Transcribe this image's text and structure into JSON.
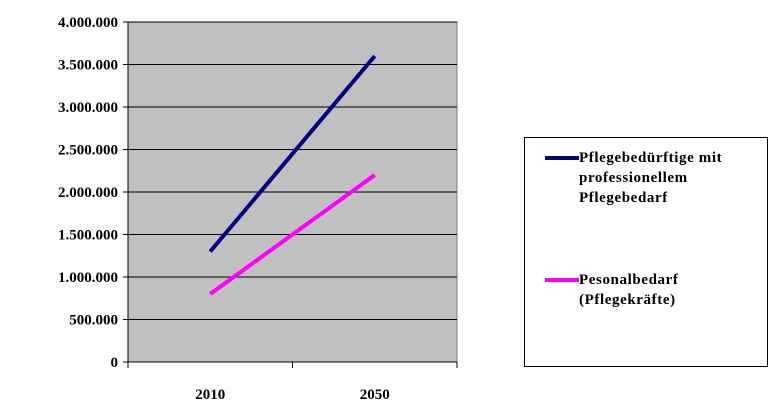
{
  "chart_data": {
    "type": "line",
    "x": [
      "2010",
      "2050"
    ],
    "ylim": [
      0,
      4000000
    ],
    "y_ticks": [
      "0",
      "500.000",
      "1.000.000",
      "1.500.000",
      "2.000.000",
      "2.500.000",
      "3.000.000",
      "3.500.000",
      "4.000.000"
    ],
    "y_tick_values": [
      0,
      500000,
      1000000,
      1500000,
      2000000,
      2500000,
      3000000,
      3500000,
      4000000
    ],
    "grid": true,
    "plot_background": "#c0c0c0",
    "legend_position": "right",
    "series": [
      {
        "name": "Pflegebedürftige mit professionellem Pflegebedarf",
        "values": [
          1300000,
          3600000
        ],
        "color": "#000080"
      },
      {
        "name": "Pesonalbedarf (Pflegekräfte)",
        "values": [
          800000,
          2200000
        ],
        "color": "#ff00ff"
      }
    ]
  }
}
